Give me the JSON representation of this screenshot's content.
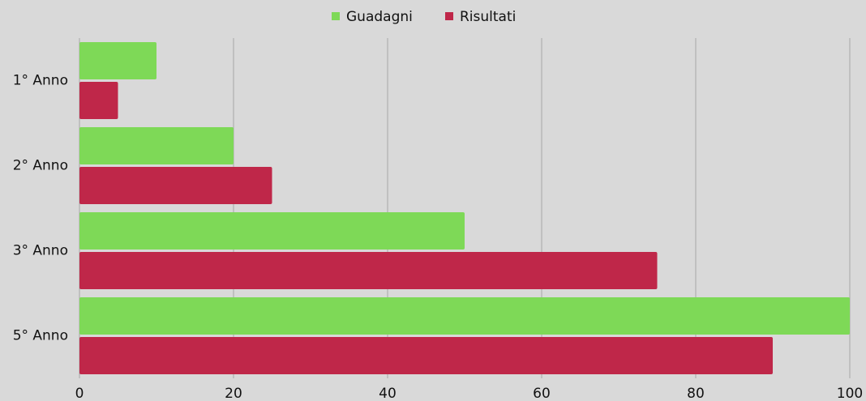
{
  "chart_data": {
    "type": "bar",
    "orientation": "horizontal",
    "categories": [
      "1° Anno",
      "2° Anno",
      "3° Anno",
      "5° Anno"
    ],
    "series": [
      {
        "name": "Guadagni",
        "color": "#7ed957",
        "values": [
          10,
          20,
          50,
          100
        ]
      },
      {
        "name": "Risultati",
        "color": "#bf2749",
        "values": [
          5,
          25,
          75,
          90
        ]
      }
    ],
    "xlim": [
      0,
      100
    ],
    "xticks": [
      0,
      20,
      40,
      60,
      80,
      100
    ],
    "grid": true,
    "legend": "top"
  }
}
